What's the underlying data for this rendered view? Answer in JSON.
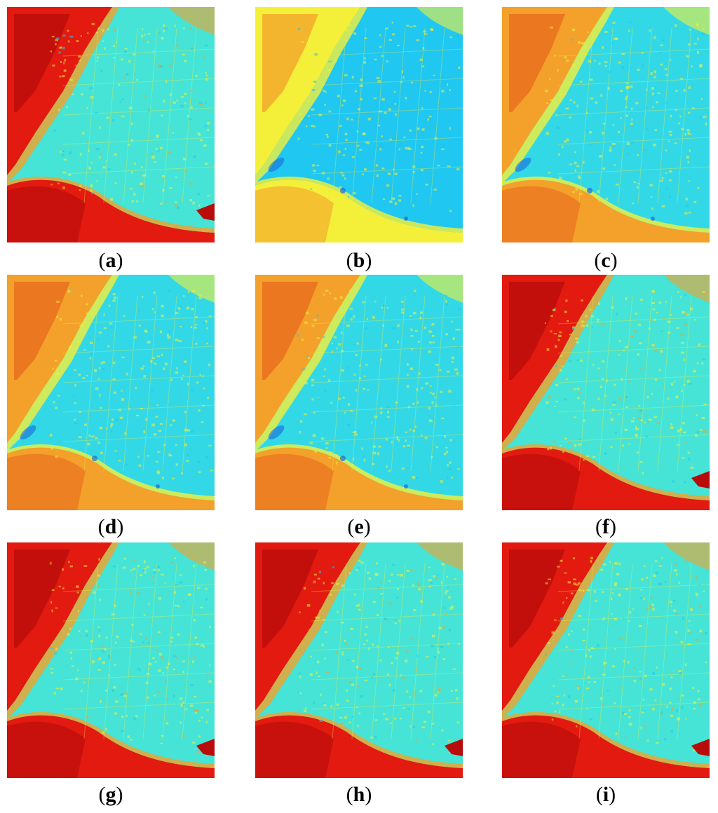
{
  "colors": {
    "water": "#45e4d6",
    "shallow": "#20c7f0",
    "deep": "#1a6bdb",
    "yellow": "#f4f03a",
    "orange": "#f3a12b",
    "red": "#e21a10",
    "darkred": "#b80c0a"
  },
  "panels": [
    {
      "label": "a",
      "variant": "hot"
    },
    {
      "label": "b",
      "variant": "cool"
    },
    {
      "label": "c",
      "variant": "warm"
    },
    {
      "label": "d",
      "variant": "warm"
    },
    {
      "label": "e",
      "variant": "warm"
    },
    {
      "label": "f",
      "variant": "hot"
    },
    {
      "label": "g",
      "variant": "hot"
    },
    {
      "label": "h",
      "variant": "hot"
    },
    {
      "label": "i",
      "variant": "hot"
    }
  ]
}
